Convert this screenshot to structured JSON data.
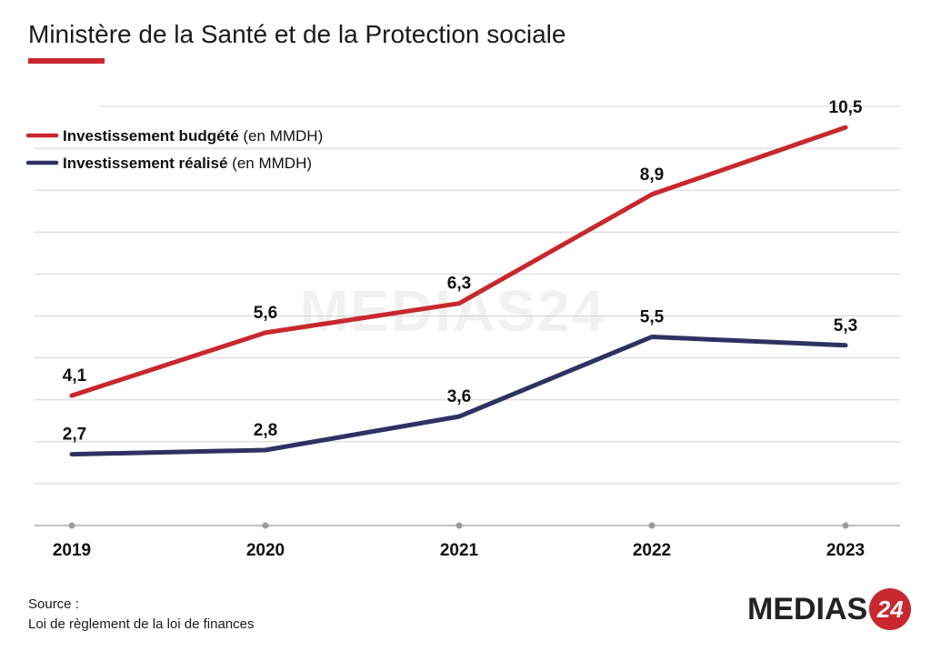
{
  "header": {
    "title": "Ministère de la Santé et de la Protection sociale"
  },
  "legend": {
    "items": [
      {
        "bold": "Investissement budgété",
        "light": " (en MMDH)",
        "color": "#c8282d"
      },
      {
        "bold": "Investissement réalisé",
        "light": " (en MMDH)",
        "color": "#2e3262"
      }
    ]
  },
  "chart_data": {
    "type": "line",
    "categories": [
      "2019",
      "2020",
      "2021",
      "2022",
      "2023"
    ],
    "series": [
      {
        "name": "Investissement budgété (en MMDH)",
        "values": [
          4.1,
          5.6,
          6.3,
          8.9,
          10.5
        ],
        "labels": [
          "4,1",
          "5,6",
          "6,3",
          "8,9",
          "10,5"
        ],
        "color": "#c8282d"
      },
      {
        "name": "Investissement réalisé (en MMDH)",
        "values": [
          2.7,
          2.8,
          3.6,
          5.5,
          5.3
        ],
        "labels": [
          "2,7",
          "2,8",
          "3,6",
          "5,5",
          "5,3"
        ],
        "color": "#2e3262"
      }
    ],
    "ylim": [
      1,
      11
    ],
    "grid": true,
    "legend_position": "top-left"
  },
  "footer": {
    "source_label": "Source :",
    "source_text": "Loi de règlement de la loi de finances"
  },
  "logo": {
    "text": "MEDIAS",
    "badge": "24"
  }
}
